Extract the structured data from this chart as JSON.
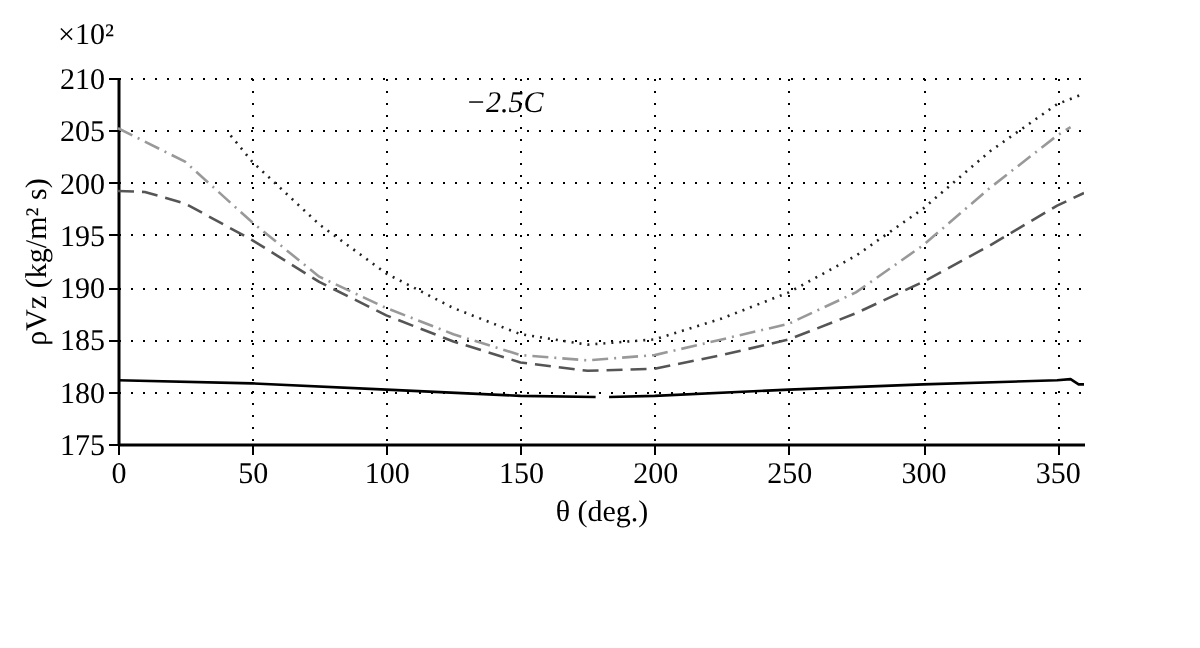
{
  "chart_data": {
    "type": "line",
    "xlabel": "θ (deg.)",
    "ylabel": "ρVz (kg/m² s)",
    "annotations": [
      "×10²",
      "−2.5C"
    ],
    "xlim": [
      0,
      360
    ],
    "xticks": [
      0,
      50,
      100,
      150,
      200,
      250,
      300,
      350
    ],
    "ylim": [
      175,
      210
    ],
    "yticks": [
      175,
      180,
      185,
      190,
      195,
      200,
      205,
      210
    ],
    "grid": true,
    "series": [
      {
        "color": "#000000",
        "line_style": "solid",
        "x": [
          0,
          50,
          100,
          150,
          178,
          180,
          183,
          200,
          250,
          300,
          350,
          355,
          358,
          360
        ],
        "values": [
          181.1,
          180.8,
          180.2,
          179.6,
          179.5,
          null,
          179.5,
          179.6,
          180.2,
          180.7,
          181.1,
          181.2,
          180.7,
          180.7
        ]
      },
      {
        "color": "#555555",
        "line_style": "dashed",
        "x": [
          0,
          10,
          25,
          50,
          75,
          100,
          125,
          150,
          175,
          200,
          225,
          250,
          275,
          300,
          325,
          350,
          360
        ],
        "values": [
          199.2,
          199.1,
          198,
          194.5,
          190.5,
          187.3,
          184.8,
          182.8,
          182,
          182.2,
          183.5,
          185,
          187.5,
          190.5,
          194,
          197.8,
          199
        ]
      },
      {
        "color": "#999999",
        "line_style": "dashdot",
        "x": [
          0,
          25,
          50,
          75,
          100,
          125,
          150,
          175,
          200,
          225,
          250,
          275,
          300,
          325,
          350,
          355
        ],
        "values": [
          205.2,
          202,
          196.2,
          191,
          188,
          185.5,
          183.5,
          183,
          183.5,
          185,
          186.5,
          189.5,
          194,
          199.5,
          204.5,
          205.3
        ]
      },
      {
        "color": "#222222",
        "line_style": "dotted",
        "x": [
          42,
          50,
          75,
          100,
          125,
          150,
          175,
          200,
          225,
          250,
          275,
          300,
          325,
          350,
          360
        ],
        "values": [
          204.5,
          202,
          196,
          191.3,
          188,
          185.5,
          184.5,
          185,
          187,
          189.5,
          193,
          197.5,
          203,
          207.5,
          208.5
        ]
      }
    ]
  }
}
